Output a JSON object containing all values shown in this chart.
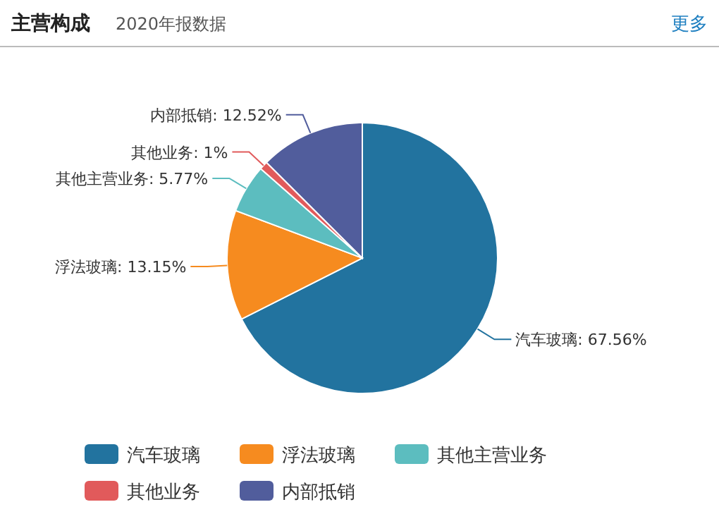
{
  "chart_data": {
    "type": "pie",
    "title": "主营构成",
    "subtitle": "2020年报数据",
    "annotations": [
      "更多"
    ],
    "categories": [
      "汽车玻璃",
      "浮法玻璃",
      "其他主营业务",
      "其他业务",
      "内部抵销"
    ],
    "values": [
      67.56,
      13.15,
      5.77,
      1,
      12.52
    ],
    "colors": [
      "#22739f",
      "#f68b1f",
      "#5cbdbf",
      "#e15a5b",
      "#515d9c"
    ],
    "value_labels": [
      "汽车玻璃: 67.56%",
      "浮法玻璃: 13.15%",
      "其他主营业务: 5.77%",
      "其他业务: 1%",
      "内部抵销: 12.52%"
    ],
    "legend": "bottom"
  }
}
